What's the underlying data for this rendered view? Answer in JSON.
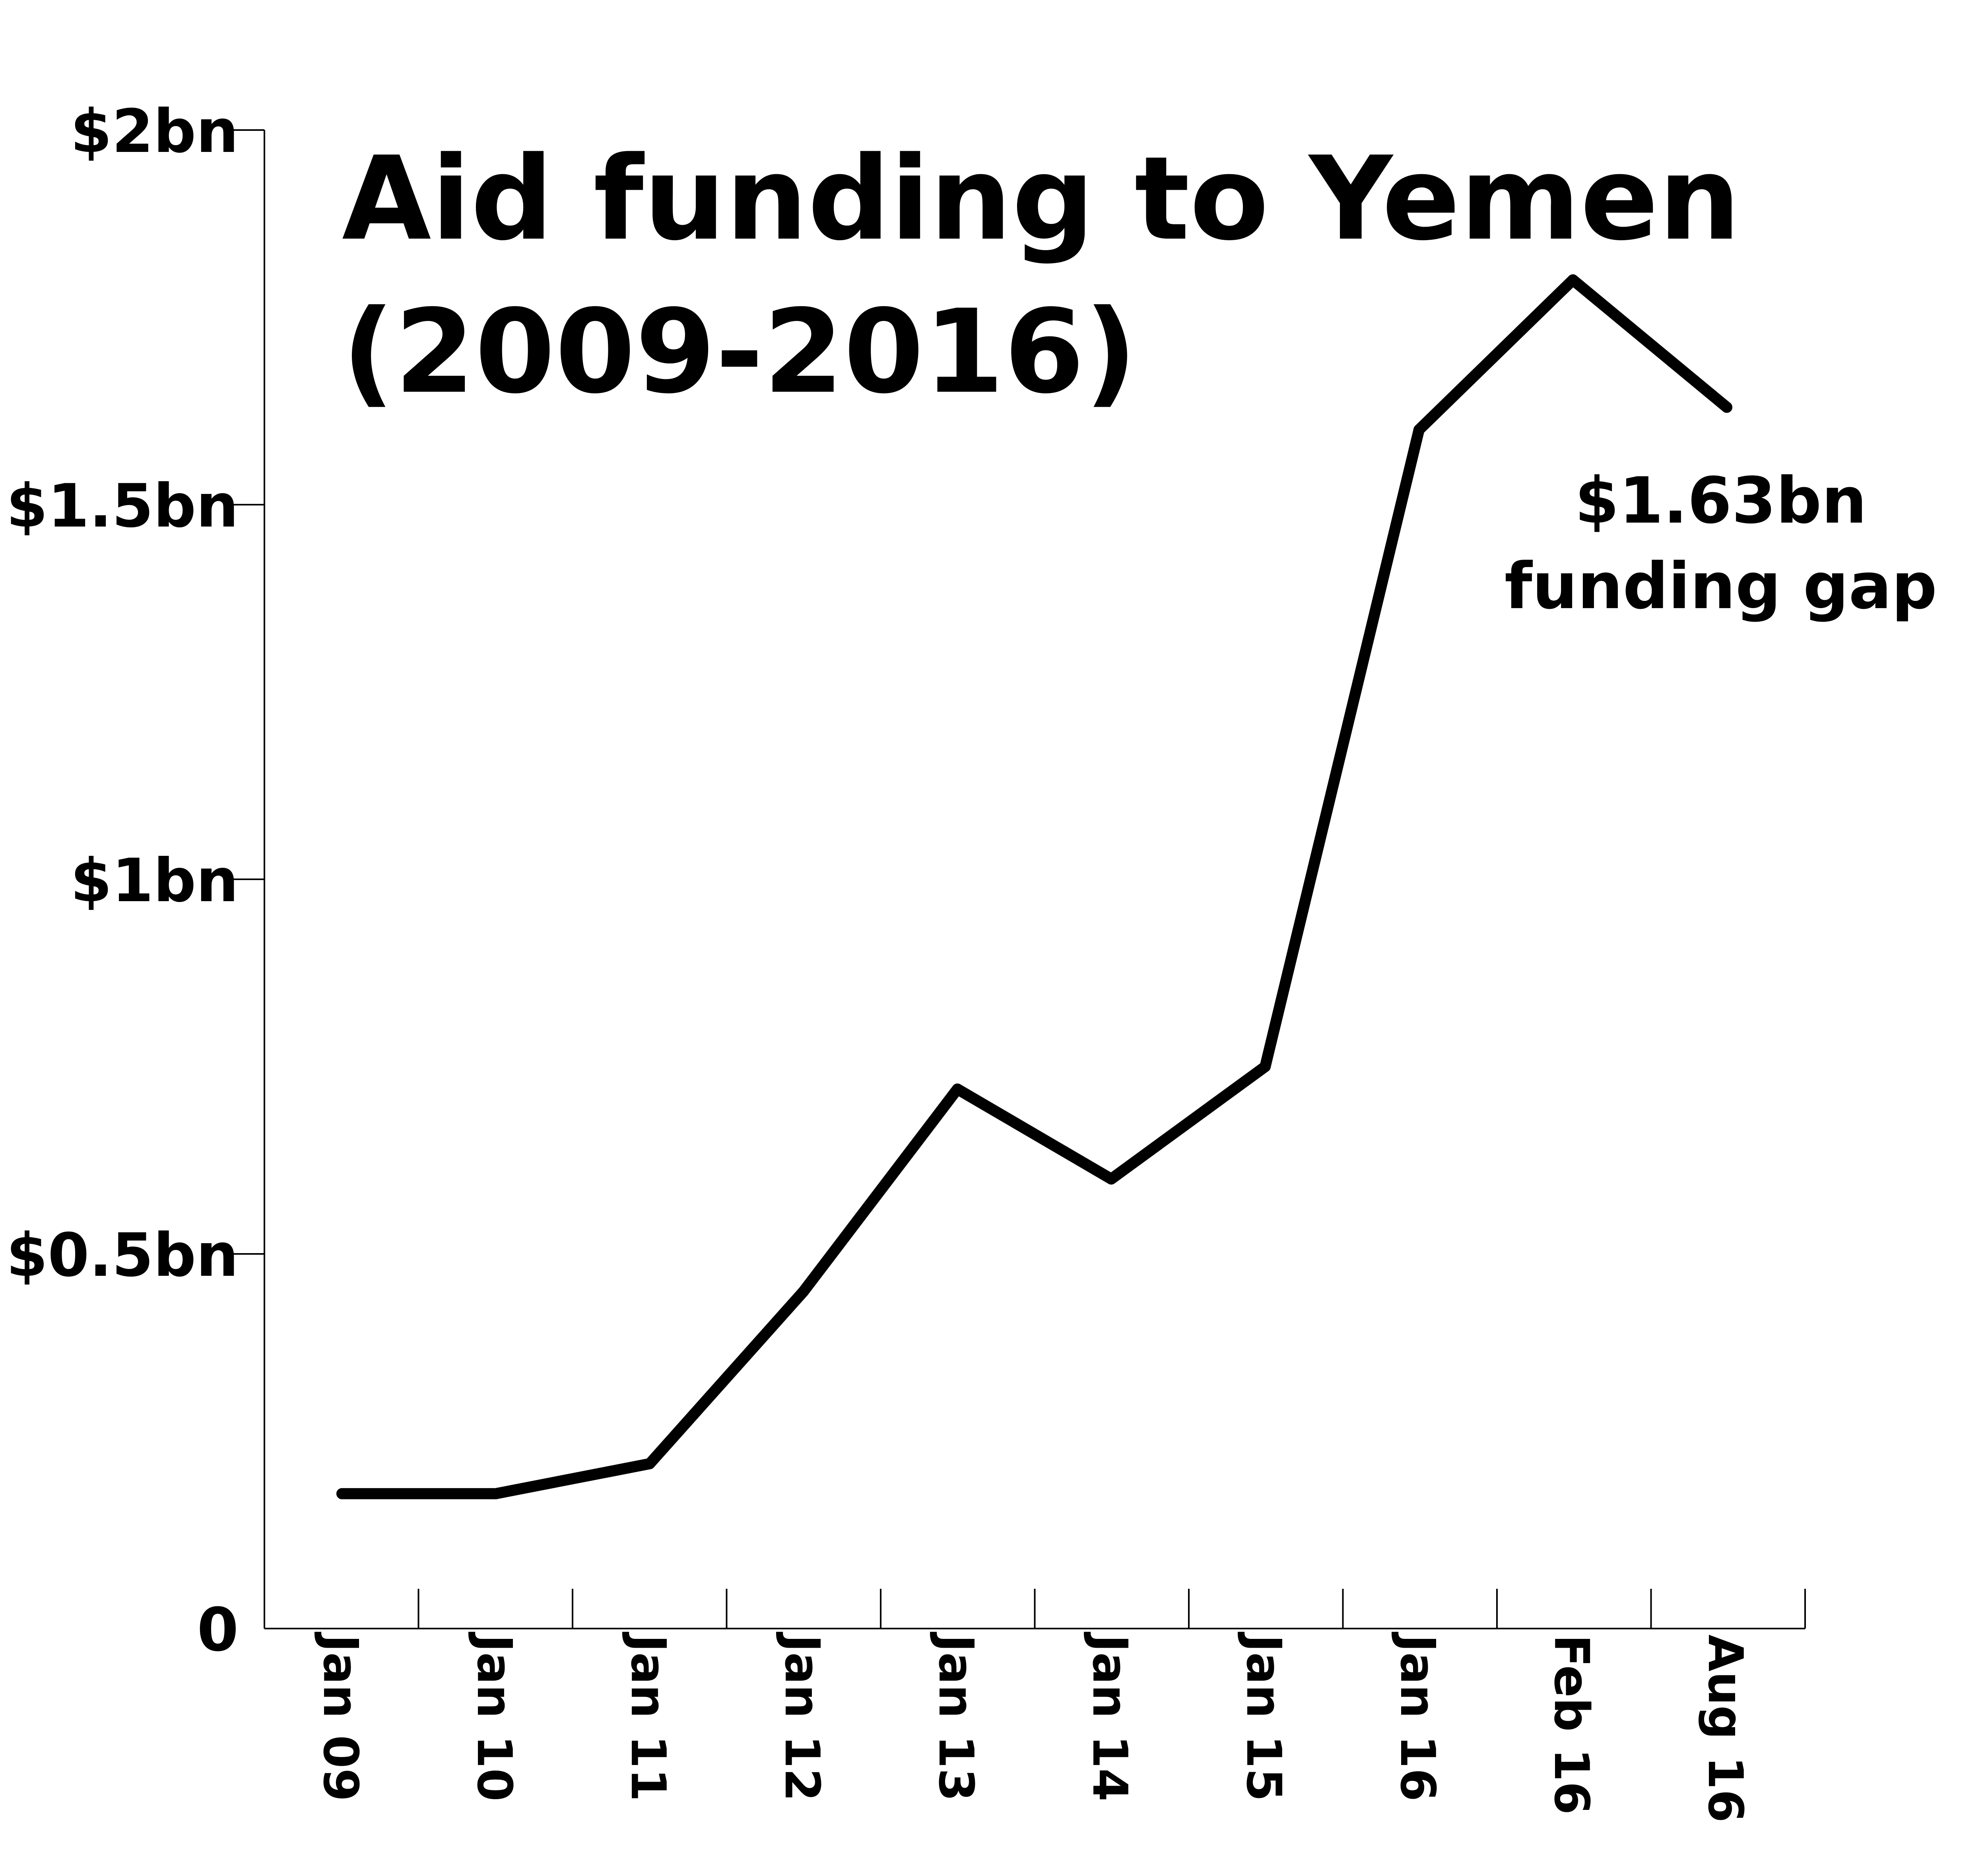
{
  "chart_data": {
    "type": "line",
    "title_lines": [
      "Aid funding to Yemen",
      "(2009-2016)"
    ],
    "categories": [
      "Jan 09",
      "Jan 10",
      "Jan 11",
      "Jan 12",
      "Jan 13",
      "Jan 14",
      "Jan 15",
      "Jan 16",
      "Feb 16",
      "Aug 16"
    ],
    "values": [
      0.18,
      0.18,
      0.22,
      0.45,
      0.72,
      0.6,
      0.75,
      1.6,
      1.8,
      1.63
    ],
    "ylim": [
      0,
      2
    ],
    "y_ticks": [
      0,
      0.5,
      1,
      1.5,
      2
    ],
    "y_tick_labels": [
      "0",
      "$0.5bn",
      "$1bn",
      "$1.5bn",
      "$2bn"
    ],
    "annotation": {
      "lines": [
        "$1.63bn",
        "funding gap"
      ],
      "points_to": "Aug 16"
    },
    "line_color": "#000000",
    "grid": false,
    "legend": "none"
  }
}
